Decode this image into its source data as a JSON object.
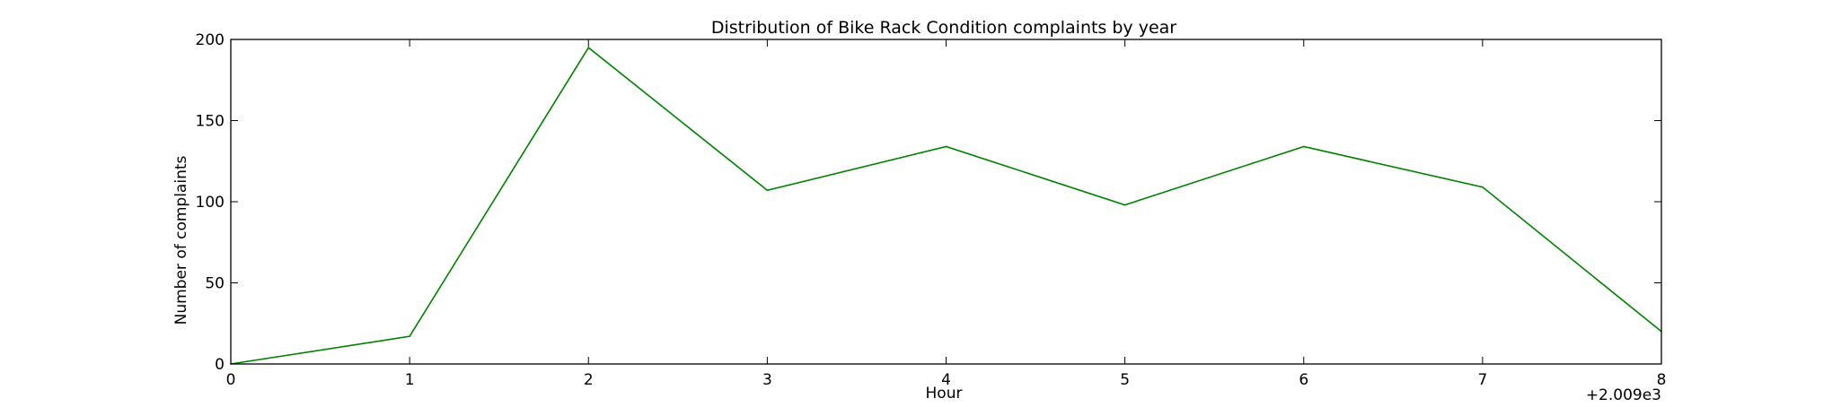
{
  "chart_data": {
    "type": "line",
    "title": "Distribution of  Bike Rack Condition complaints by year",
    "xlabel": "Hour",
    "ylabel": "Number of complaints",
    "x_offset_label": "+2.009e3",
    "x_tick_labels": [
      "0",
      "1",
      "2",
      "3",
      "4",
      "5",
      "6",
      "7",
      "8"
    ],
    "y_tick_labels": [
      "0",
      "50",
      "100",
      "150",
      "200"
    ],
    "xlim": [
      0,
      8
    ],
    "ylim": [
      0,
      200
    ],
    "grid": false,
    "series": [
      {
        "color": "#008000",
        "x": [
          0,
          1,
          2,
          3,
          4,
          5,
          6,
          7,
          8
        ],
        "values": [
          0,
          17,
          195,
          107,
          134,
          98,
          134,
          109,
          20
        ]
      }
    ]
  }
}
